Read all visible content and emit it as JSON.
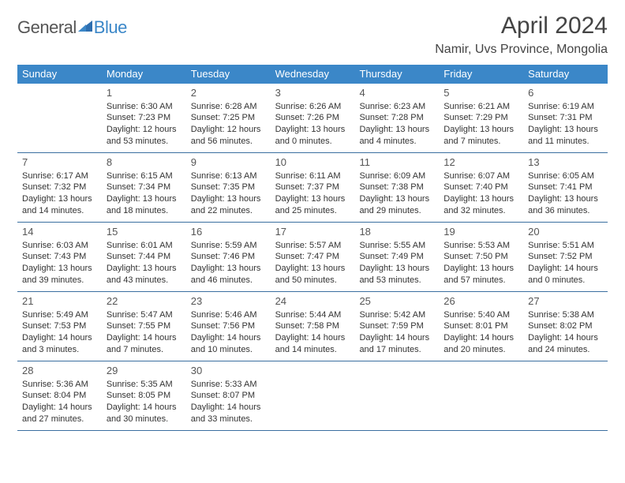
{
  "logo": {
    "general": "General",
    "blue": "Blue"
  },
  "title": "April 2024",
  "location": "Namir, Uvs Province, Mongolia",
  "colors": {
    "accent": "#3b87c8",
    "rule": "#3b6fa0",
    "text": "#333333",
    "background": "#ffffff"
  },
  "dayHeaders": [
    "Sunday",
    "Monday",
    "Tuesday",
    "Wednesday",
    "Thursday",
    "Friday",
    "Saturday"
  ],
  "weeks": [
    [
      {
        "num": "",
        "lines": []
      },
      {
        "num": "1",
        "lines": [
          "Sunrise: 6:30 AM",
          "Sunset: 7:23 PM",
          "Daylight: 12 hours and 53 minutes."
        ]
      },
      {
        "num": "2",
        "lines": [
          "Sunrise: 6:28 AM",
          "Sunset: 7:25 PM",
          "Daylight: 12 hours and 56 minutes."
        ]
      },
      {
        "num": "3",
        "lines": [
          "Sunrise: 6:26 AM",
          "Sunset: 7:26 PM",
          "Daylight: 13 hours and 0 minutes."
        ]
      },
      {
        "num": "4",
        "lines": [
          "Sunrise: 6:23 AM",
          "Sunset: 7:28 PM",
          "Daylight: 13 hours and 4 minutes."
        ]
      },
      {
        "num": "5",
        "lines": [
          "Sunrise: 6:21 AM",
          "Sunset: 7:29 PM",
          "Daylight: 13 hours and 7 minutes."
        ]
      },
      {
        "num": "6",
        "lines": [
          "Sunrise: 6:19 AM",
          "Sunset: 7:31 PM",
          "Daylight: 13 hours and 11 minutes."
        ]
      }
    ],
    [
      {
        "num": "7",
        "lines": [
          "Sunrise: 6:17 AM",
          "Sunset: 7:32 PM",
          "Daylight: 13 hours and 14 minutes."
        ]
      },
      {
        "num": "8",
        "lines": [
          "Sunrise: 6:15 AM",
          "Sunset: 7:34 PM",
          "Daylight: 13 hours and 18 minutes."
        ]
      },
      {
        "num": "9",
        "lines": [
          "Sunrise: 6:13 AM",
          "Sunset: 7:35 PM",
          "Daylight: 13 hours and 22 minutes."
        ]
      },
      {
        "num": "10",
        "lines": [
          "Sunrise: 6:11 AM",
          "Sunset: 7:37 PM",
          "Daylight: 13 hours and 25 minutes."
        ]
      },
      {
        "num": "11",
        "lines": [
          "Sunrise: 6:09 AM",
          "Sunset: 7:38 PM",
          "Daylight: 13 hours and 29 minutes."
        ]
      },
      {
        "num": "12",
        "lines": [
          "Sunrise: 6:07 AM",
          "Sunset: 7:40 PM",
          "Daylight: 13 hours and 32 minutes."
        ]
      },
      {
        "num": "13",
        "lines": [
          "Sunrise: 6:05 AM",
          "Sunset: 7:41 PM",
          "Daylight: 13 hours and 36 minutes."
        ]
      }
    ],
    [
      {
        "num": "14",
        "lines": [
          "Sunrise: 6:03 AM",
          "Sunset: 7:43 PM",
          "Daylight: 13 hours and 39 minutes."
        ]
      },
      {
        "num": "15",
        "lines": [
          "Sunrise: 6:01 AM",
          "Sunset: 7:44 PM",
          "Daylight: 13 hours and 43 minutes."
        ]
      },
      {
        "num": "16",
        "lines": [
          "Sunrise: 5:59 AM",
          "Sunset: 7:46 PM",
          "Daylight: 13 hours and 46 minutes."
        ]
      },
      {
        "num": "17",
        "lines": [
          "Sunrise: 5:57 AM",
          "Sunset: 7:47 PM",
          "Daylight: 13 hours and 50 minutes."
        ]
      },
      {
        "num": "18",
        "lines": [
          "Sunrise: 5:55 AM",
          "Sunset: 7:49 PM",
          "Daylight: 13 hours and 53 minutes."
        ]
      },
      {
        "num": "19",
        "lines": [
          "Sunrise: 5:53 AM",
          "Sunset: 7:50 PM",
          "Daylight: 13 hours and 57 minutes."
        ]
      },
      {
        "num": "20",
        "lines": [
          "Sunrise: 5:51 AM",
          "Sunset: 7:52 PM",
          "Daylight: 14 hours and 0 minutes."
        ]
      }
    ],
    [
      {
        "num": "21",
        "lines": [
          "Sunrise: 5:49 AM",
          "Sunset: 7:53 PM",
          "Daylight: 14 hours and 3 minutes."
        ]
      },
      {
        "num": "22",
        "lines": [
          "Sunrise: 5:47 AM",
          "Sunset: 7:55 PM",
          "Daylight: 14 hours and 7 minutes."
        ]
      },
      {
        "num": "23",
        "lines": [
          "Sunrise: 5:46 AM",
          "Sunset: 7:56 PM",
          "Daylight: 14 hours and 10 minutes."
        ]
      },
      {
        "num": "24",
        "lines": [
          "Sunrise: 5:44 AM",
          "Sunset: 7:58 PM",
          "Daylight: 14 hours and 14 minutes."
        ]
      },
      {
        "num": "25",
        "lines": [
          "Sunrise: 5:42 AM",
          "Sunset: 7:59 PM",
          "Daylight: 14 hours and 17 minutes."
        ]
      },
      {
        "num": "26",
        "lines": [
          "Sunrise: 5:40 AM",
          "Sunset: 8:01 PM",
          "Daylight: 14 hours and 20 minutes."
        ]
      },
      {
        "num": "27",
        "lines": [
          "Sunrise: 5:38 AM",
          "Sunset: 8:02 PM",
          "Daylight: 14 hours and 24 minutes."
        ]
      }
    ],
    [
      {
        "num": "28",
        "lines": [
          "Sunrise: 5:36 AM",
          "Sunset: 8:04 PM",
          "Daylight: 14 hours and 27 minutes."
        ]
      },
      {
        "num": "29",
        "lines": [
          "Sunrise: 5:35 AM",
          "Sunset: 8:05 PM",
          "Daylight: 14 hours and 30 minutes."
        ]
      },
      {
        "num": "30",
        "lines": [
          "Sunrise: 5:33 AM",
          "Sunset: 8:07 PM",
          "Daylight: 14 hours and 33 minutes."
        ]
      },
      {
        "num": "",
        "lines": []
      },
      {
        "num": "",
        "lines": []
      },
      {
        "num": "",
        "lines": []
      },
      {
        "num": "",
        "lines": []
      }
    ]
  ]
}
